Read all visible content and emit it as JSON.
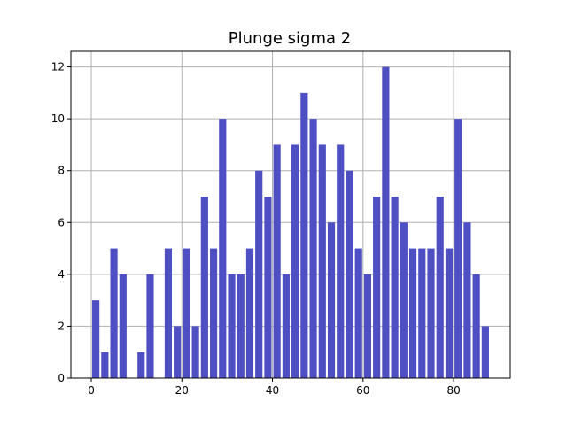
{
  "chart_data": {
    "type": "bar",
    "title": "Plunge sigma 2",
    "xlabel": "",
    "ylabel": "",
    "xlim": [
      -4.5,
      92.5
    ],
    "ylim": [
      0,
      12.6
    ],
    "x_ticks": [
      0,
      20,
      40,
      60,
      80
    ],
    "y_ticks": [
      0,
      2,
      4,
      6,
      8,
      10,
      12
    ],
    "grid": true,
    "bar_width": 1.6,
    "bar_color": "#4f4fc4",
    "x": [
      1,
      3,
      5,
      7,
      11,
      13,
      17,
      19,
      21,
      23,
      25,
      27,
      29,
      31,
      33,
      35,
      37,
      39,
      41,
      43,
      45,
      47,
      49,
      51,
      53,
      55,
      57,
      59,
      61,
      63,
      65,
      67,
      69,
      71,
      73,
      75,
      77,
      79,
      81,
      83,
      85,
      87
    ],
    "values": [
      3,
      1,
      5,
      4,
      1,
      4,
      5,
      2,
      5,
      2,
      7,
      5,
      10,
      4,
      4,
      5,
      8,
      7,
      9,
      4,
      9,
      11,
      10,
      9,
      6,
      9,
      8,
      5,
      4,
      7,
      12,
      7,
      6,
      5,
      5,
      5,
      7,
      5,
      10,
      6,
      4,
      2
    ]
  }
}
